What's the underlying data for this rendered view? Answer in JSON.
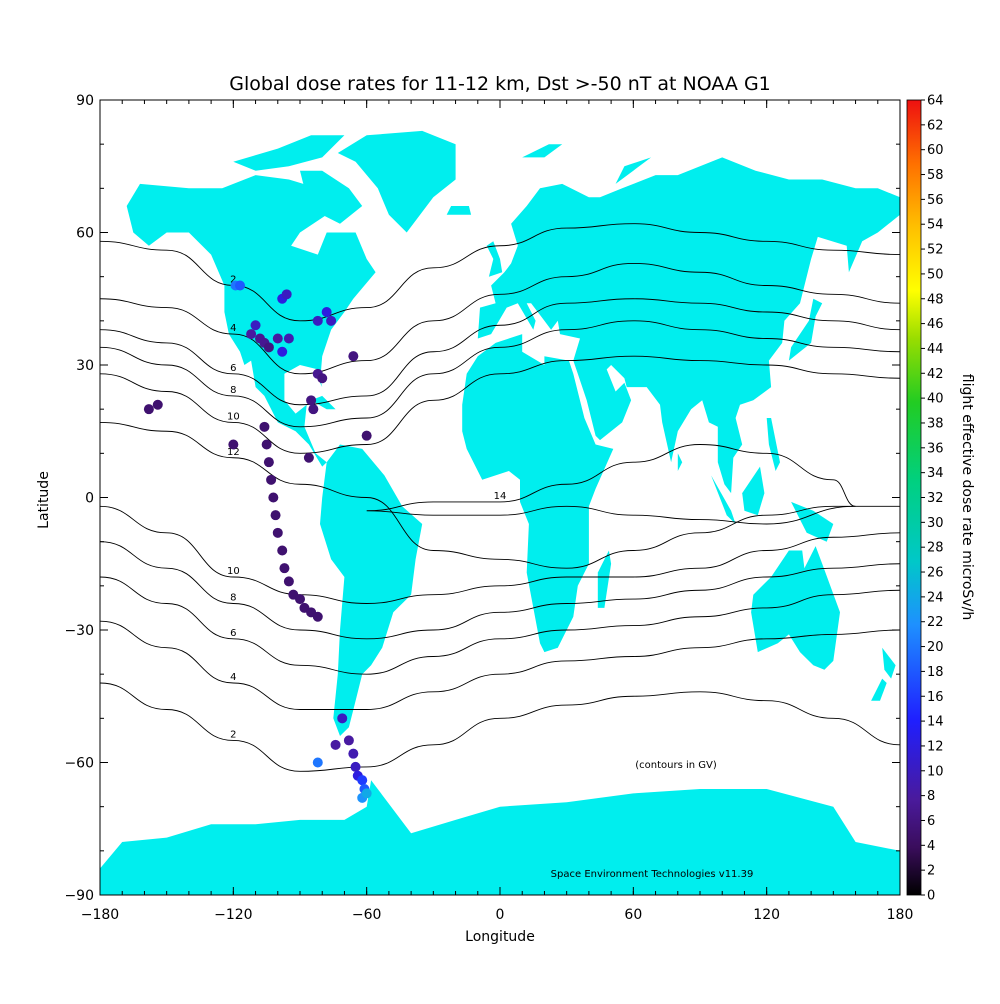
{
  "chart_data": {
    "type": "scatter",
    "title": "Global dose rates for 11-12 km, Dst >-50 nT at NOAA G1",
    "xlabel": "Longitude",
    "ylabel": "Latitude",
    "xlim": [
      -180,
      180
    ],
    "ylim": [
      -90,
      90
    ],
    "x_ticks": [
      "-180",
      "-120",
      "-60",
      "0",
      "60",
      "120",
      "180"
    ],
    "y_ticks": [
      "-90",
      "-60",
      "-30",
      "0",
      "30",
      "60",
      "90"
    ],
    "grid": false,
    "colorbar": {
      "label": "flight effective dose rate microSv/h",
      "min": 0,
      "max": 64,
      "tick_labels": [
        "0",
        "2",
        "4",
        "6",
        "8",
        "10",
        "12",
        "14",
        "16",
        "18",
        "20",
        "22",
        "24",
        "26",
        "28",
        "30",
        "32",
        "34",
        "36",
        "38",
        "40",
        "42",
        "44",
        "46",
        "48",
        "50",
        "52",
        "54",
        "56",
        "58",
        "60",
        "62",
        "64"
      ]
    },
    "annotations": {
      "contour_note": "(contours in GV)",
      "credit": "Space Environment Technologies v11.39"
    },
    "land_color": "#00eeee",
    "contours": [
      {
        "level": 2,
        "label": "2",
        "points": [
          [
            -180,
            58
          ],
          [
            -150,
            56
          ],
          [
            -120,
            48
          ],
          [
            -90,
            40
          ],
          [
            -60,
            43
          ],
          [
            -30,
            52
          ],
          [
            0,
            57
          ],
          [
            30,
            61
          ],
          [
            60,
            62
          ],
          [
            90,
            60
          ],
          [
            120,
            58
          ],
          [
            150,
            56
          ],
          [
            180,
            55
          ]
        ]
      },
      {
        "level": 4,
        "label": "4",
        "points": [
          [
            -180,
            45
          ],
          [
            -150,
            43
          ],
          [
            -120,
            37
          ],
          [
            -90,
            28
          ],
          [
            -60,
            31
          ],
          [
            -30,
            40
          ],
          [
            0,
            46
          ],
          [
            30,
            50
          ],
          [
            60,
            53
          ],
          [
            90,
            51
          ],
          [
            120,
            48
          ],
          [
            150,
            46
          ],
          [
            180,
            44
          ]
        ]
      },
      {
        "level": 6,
        "label": "6",
        "points": [
          [
            -180,
            38
          ],
          [
            -150,
            35
          ],
          [
            -120,
            28
          ],
          [
            -90,
            21
          ],
          [
            -60,
            23
          ],
          [
            -30,
            33
          ],
          [
            0,
            39
          ],
          [
            30,
            44
          ],
          [
            60,
            45
          ],
          [
            90,
            44
          ],
          [
            120,
            42
          ],
          [
            150,
            40
          ],
          [
            180,
            38
          ]
        ]
      },
      {
        "level": 8,
        "label": "8",
        "points": [
          [
            -180,
            34
          ],
          [
            -150,
            30
          ],
          [
            -120,
            23
          ],
          [
            -90,
            16
          ],
          [
            -60,
            18
          ],
          [
            -30,
            28
          ],
          [
            0,
            34
          ],
          [
            30,
            38
          ],
          [
            60,
            40
          ],
          [
            90,
            38
          ],
          [
            120,
            36
          ],
          [
            150,
            34
          ],
          [
            180,
            33
          ]
        ]
      },
      {
        "level": 10,
        "label": "10",
        "points": [
          [
            -180,
            28
          ],
          [
            -150,
            24
          ],
          [
            -120,
            17
          ],
          [
            -90,
            10
          ],
          [
            -60,
            12
          ],
          [
            -30,
            22
          ],
          [
            0,
            28
          ],
          [
            30,
            31
          ],
          [
            60,
            32
          ],
          [
            90,
            31
          ],
          [
            120,
            30
          ],
          [
            150,
            28
          ],
          [
            180,
            27
          ]
        ]
      },
      {
        "level": 12,
        "label": "12",
        "points": [
          [
            -180,
            17
          ],
          [
            -150,
            15
          ],
          [
            -120,
            9
          ],
          [
            -90,
            3
          ],
          [
            -60,
            0
          ],
          [
            -30,
            -12
          ],
          [
            0,
            -14
          ],
          [
            30,
            -16
          ],
          [
            60,
            -12
          ],
          [
            90,
            -8
          ],
          [
            120,
            -4
          ],
          [
            150,
            -2
          ],
          [
            180,
            -2
          ]
        ]
      },
      {
        "level": 10,
        "label": "10",
        "points": [
          [
            -180,
            -2
          ],
          [
            -150,
            -8
          ],
          [
            -120,
            -18
          ],
          [
            -90,
            -22
          ],
          [
            -60,
            -24
          ],
          [
            -30,
            -22
          ],
          [
            0,
            -20
          ],
          [
            30,
            -18
          ],
          [
            60,
            -18
          ],
          [
            90,
            -16
          ],
          [
            120,
            -12
          ],
          [
            150,
            -9
          ],
          [
            180,
            -8
          ]
        ]
      },
      {
        "level": 8,
        "label": "8",
        "points": [
          [
            -180,
            -10
          ],
          [
            -150,
            -16
          ],
          [
            -120,
            -24
          ],
          [
            -90,
            -30
          ],
          [
            -60,
            -32
          ],
          [
            -30,
            -30
          ],
          [
            0,
            -26
          ],
          [
            30,
            -24
          ],
          [
            60,
            -23
          ],
          [
            90,
            -21
          ],
          [
            120,
            -18
          ],
          [
            150,
            -16
          ],
          [
            180,
            -15
          ]
        ]
      },
      {
        "level": 6,
        "label": "6",
        "points": [
          [
            -180,
            -18
          ],
          [
            -150,
            -24
          ],
          [
            -120,
            -32
          ],
          [
            -90,
            -38
          ],
          [
            -60,
            -40
          ],
          [
            -30,
            -36
          ],
          [
            0,
            -32
          ],
          [
            30,
            -30
          ],
          [
            60,
            -29
          ],
          [
            90,
            -27
          ],
          [
            120,
            -25
          ],
          [
            150,
            -22
          ],
          [
            180,
            -21
          ]
        ]
      },
      {
        "level": 4,
        "label": "4",
        "points": [
          [
            -180,
            -28
          ],
          [
            -150,
            -34
          ],
          [
            -120,
            -42
          ],
          [
            -90,
            -48
          ],
          [
            -60,
            -48
          ],
          [
            -30,
            -44
          ],
          [
            0,
            -40
          ],
          [
            30,
            -37
          ],
          [
            60,
            -36
          ],
          [
            90,
            -34
          ],
          [
            120,
            -32
          ],
          [
            150,
            -31
          ],
          [
            180,
            -30
          ]
        ]
      },
      {
        "level": 2,
        "label": "2",
        "points": [
          [
            -180,
            -42
          ],
          [
            -150,
            -48
          ],
          [
            -120,
            -55
          ],
          [
            -90,
            -62
          ],
          [
            -60,
            -61
          ],
          [
            -30,
            -56
          ],
          [
            0,
            -50
          ],
          [
            30,
            -47
          ],
          [
            60,
            -45
          ],
          [
            90,
            -44
          ],
          [
            120,
            -46
          ],
          [
            150,
            -50
          ],
          [
            180,
            -56
          ]
        ]
      },
      {
        "level": 14,
        "label": "14",
        "points": [
          [
            -60,
            -3
          ],
          [
            -30,
            -1
          ],
          [
            0,
            -1
          ],
          [
            30,
            3
          ],
          [
            60,
            8
          ],
          [
            90,
            12
          ],
          [
            120,
            10
          ],
          [
            150,
            4
          ],
          [
            160,
            -2
          ],
          [
            120,
            -6
          ],
          [
            90,
            -5
          ],
          [
            60,
            -4
          ],
          [
            30,
            -2
          ],
          [
            0,
            -4
          ],
          [
            -30,
            -4
          ],
          [
            -60,
            -3
          ]
        ]
      }
    ],
    "series": [
      {
        "values": [
          {
            "x": -119,
            "y": 48,
            "v": 20
          },
          {
            "x": -117,
            "y": 48,
            "v": 18
          },
          {
            "x": -98,
            "y": 45,
            "v": 12
          },
          {
            "x": -96,
            "y": 46,
            "v": 10
          },
          {
            "x": -110,
            "y": 39,
            "v": 10
          },
          {
            "x": -112,
            "y": 37,
            "v": 8
          },
          {
            "x": -108,
            "y": 36,
            "v": 7
          },
          {
            "x": -106,
            "y": 35,
            "v": 7
          },
          {
            "x": -104,
            "y": 34,
            "v": 6
          },
          {
            "x": -100,
            "y": 36,
            "v": 8
          },
          {
            "x": -95,
            "y": 36,
            "v": 9
          },
          {
            "x": -98,
            "y": 33,
            "v": 12
          },
          {
            "x": -82,
            "y": 40,
            "v": 10
          },
          {
            "x": -76,
            "y": 40,
            "v": 10
          },
          {
            "x": -78,
            "y": 42,
            "v": 12
          },
          {
            "x": -66,
            "y": 32,
            "v": 6
          },
          {
            "x": -82,
            "y": 28,
            "v": 7
          },
          {
            "x": -80,
            "y": 27,
            "v": 6
          },
          {
            "x": -85,
            "y": 22,
            "v": 6
          },
          {
            "x": -84,
            "y": 20,
            "v": 6
          },
          {
            "x": -158,
            "y": 20,
            "v": 5
          },
          {
            "x": -154,
            "y": 21,
            "v": 5
          },
          {
            "x": -120,
            "y": 12,
            "v": 5
          },
          {
            "x": -60,
            "y": 14,
            "v": 5
          },
          {
            "x": -86,
            "y": 9,
            "v": 5
          },
          {
            "x": -106,
            "y": 16,
            "v": 5
          },
          {
            "x": -105,
            "y": 12,
            "v": 5
          },
          {
            "x": -104,
            "y": 8,
            "v": 5
          },
          {
            "x": -103,
            "y": 4,
            "v": 5
          },
          {
            "x": -102,
            "y": 0,
            "v": 5
          },
          {
            "x": -101,
            "y": -4,
            "v": 5
          },
          {
            "x": -100,
            "y": -8,
            "v": 5
          },
          {
            "x": -98,
            "y": -12,
            "v": 5
          },
          {
            "x": -97,
            "y": -16,
            "v": 5
          },
          {
            "x": -95,
            "y": -19,
            "v": 5
          },
          {
            "x": -93,
            "y": -22,
            "v": 5
          },
          {
            "x": -90,
            "y": -23,
            "v": 5
          },
          {
            "x": -88,
            "y": -25,
            "v": 5
          },
          {
            "x": -85,
            "y": -26,
            "v": 5
          },
          {
            "x": -82,
            "y": -27,
            "v": 5
          },
          {
            "x": -71,
            "y": -50,
            "v": 10
          },
          {
            "x": -74,
            "y": -56,
            "v": 8
          },
          {
            "x": -68,
            "y": -55,
            "v": 8
          },
          {
            "x": -66,
            "y": -58,
            "v": 9
          },
          {
            "x": -65,
            "y": -61,
            "v": 10
          },
          {
            "x": -64,
            "y": -63,
            "v": 12
          },
          {
            "x": -62,
            "y": -64,
            "v": 16
          },
          {
            "x": -61,
            "y": -66,
            "v": 18
          },
          {
            "x": -62,
            "y": -68,
            "v": 22
          },
          {
            "x": -60,
            "y": -67,
            "v": 24
          },
          {
            "x": -82,
            "y": -60,
            "v": 20
          }
        ]
      }
    ]
  }
}
